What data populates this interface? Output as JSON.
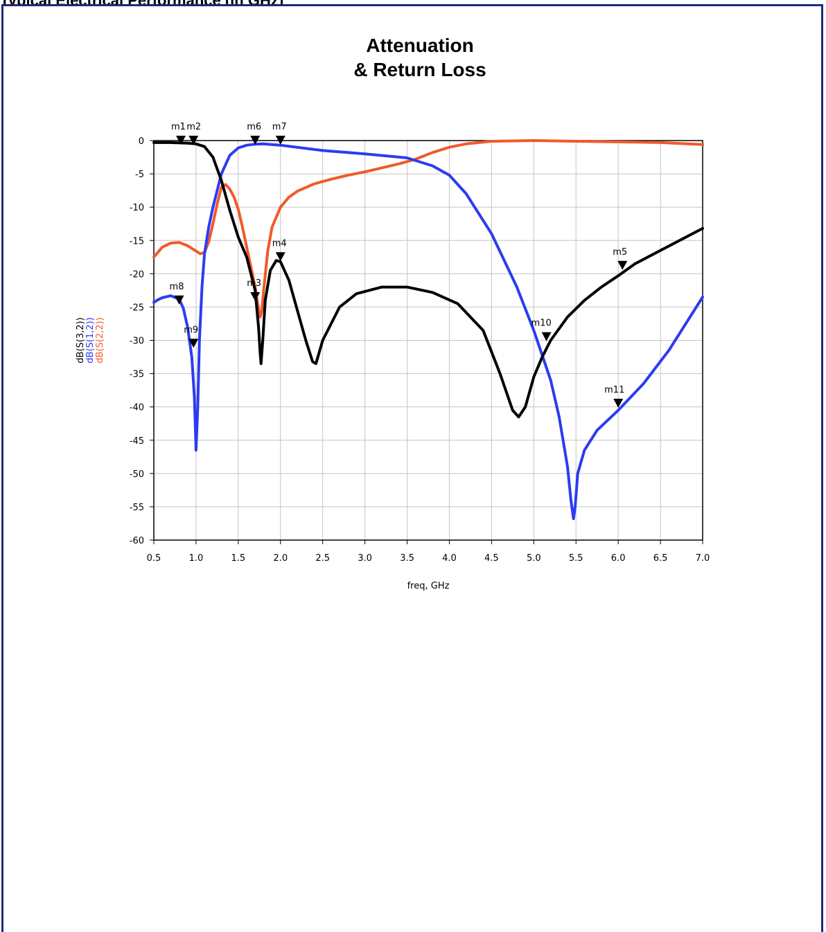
{
  "header": {
    "text": "Typical Electrical Performance (in GHz)"
  },
  "chart_data": {
    "type": "line",
    "title_lines": [
      "Attenuation",
      "& Return Loss"
    ],
    "xlabel": "freq, GHz",
    "ylabels": [
      {
        "text": "dB(S(3,2))",
        "color": "#000000"
      },
      {
        "text": "dB(S(1,2))",
        "color": "#2b3cf0"
      },
      {
        "text": "dB(S(2,2))",
        "color": "#f05a28"
      }
    ],
    "xlim": [
      0.5,
      7.0
    ],
    "ylim": [
      -60,
      0
    ],
    "xticks": [
      0.5,
      1.0,
      1.5,
      2.0,
      2.5,
      3.0,
      3.5,
      4.0,
      4.5,
      5.0,
      5.5,
      6.0,
      6.5,
      7.0
    ],
    "xtick_labels": [
      "0.5",
      "1.0",
      "1.5",
      "2.0",
      "2.5",
      "3.0",
      "3.5",
      "4.0",
      "4.5",
      "5.0",
      "5.5",
      "6.0",
      "6.5",
      "7.0"
    ],
    "yticks": [
      0,
      -5,
      -10,
      -15,
      -20,
      -25,
      -30,
      -35,
      -40,
      -45,
      -50,
      -55,
      -60
    ],
    "ytick_labels": [
      "0",
      "-5",
      "-10",
      "-15",
      "-20",
      "-25",
      "-30",
      "-35",
      "-40",
      "-45",
      "-50",
      "-55",
      "-60"
    ],
    "grid": true,
    "series": [
      {
        "name": "dB(S(2,2))",
        "color": "#f05a28",
        "x": [
          0.5,
          0.6,
          0.7,
          0.8,
          0.9,
          1.0,
          1.05,
          1.1,
          1.15,
          1.2,
          1.25,
          1.3,
          1.35,
          1.4,
          1.45,
          1.5,
          1.55,
          1.6,
          1.65,
          1.7,
          1.73,
          1.76,
          1.78,
          1.8,
          1.85,
          1.9,
          2.0,
          2.1,
          2.2,
          2.4,
          2.6,
          2.8,
          3.0,
          3.2,
          3.4,
          3.6,
          3.8,
          4.0,
          4.2,
          4.5,
          5.0,
          5.5,
          6.0,
          6.5,
          7.0
        ],
        "y": [
          -17.5,
          -16.0,
          -15.4,
          -15.3,
          -15.8,
          -16.6,
          -17.0,
          -16.8,
          -15.2,
          -12.5,
          -9.5,
          -7.0,
          -6.6,
          -7.3,
          -8.5,
          -10.3,
          -13,
          -16,
          -19,
          -22,
          -24.5,
          -26.5,
          -25.5,
          -22.5,
          -16.5,
          -13,
          -10,
          -8.5,
          -7.6,
          -6.5,
          -5.8,
          -5.2,
          -4.7,
          -4.1,
          -3.5,
          -2.8,
          -1.8,
          -1.0,
          -0.5,
          -0.1,
          0,
          -0.1,
          -0.2,
          -0.3,
          -0.6
        ]
      },
      {
        "name": "dB(S(1,2))",
        "color": "#2b3cf0",
        "x": [
          0.5,
          0.55,
          0.6,
          0.7,
          0.8,
          0.85,
          0.9,
          0.95,
          0.98,
          1.0,
          1.02,
          1.04,
          1.07,
          1.1,
          1.15,
          1.2,
          1.3,
          1.4,
          1.5,
          1.6,
          1.7,
          1.8,
          2.0,
          2.5,
          3.0,
          3.5,
          3.8,
          4.0,
          4.2,
          4.5,
          4.8,
          5.0,
          5.2,
          5.3,
          5.4,
          5.44,
          5.47,
          5.49,
          5.52,
          5.6,
          5.75,
          6.0,
          6.3,
          6.6,
          7.0
        ],
        "y": [
          -24.3,
          -23.9,
          -23.6,
          -23.3,
          -23.8,
          -25.2,
          -28,
          -32.5,
          -38.5,
          -46.5,
          -40,
          -30,
          -22,
          -17,
          -13,
          -10,
          -5,
          -2.2,
          -1.1,
          -0.7,
          -0.55,
          -0.5,
          -0.7,
          -1.5,
          -2.0,
          -2.6,
          -3.8,
          -5.2,
          -8.0,
          -14.0,
          -22.0,
          -28.5,
          -36.0,
          -41.5,
          -49,
          -54,
          -56.8,
          -55,
          -50,
          -46.5,
          -43.5,
          -40.5,
          -36.5,
          -31.5,
          -23.5
        ]
      },
      {
        "name": "dB(S(3,2))",
        "color": "#000000",
        "x": [
          0.5,
          0.7,
          0.9,
          1.0,
          1.1,
          1.2,
          1.3,
          1.4,
          1.5,
          1.6,
          1.7,
          1.74,
          1.76,
          1.77,
          1.79,
          1.82,
          1.88,
          1.95,
          2.0,
          2.1,
          2.2,
          2.3,
          2.38,
          2.42,
          2.5,
          2.7,
          2.9,
          3.2,
          3.5,
          3.8,
          4.1,
          4.4,
          4.6,
          4.75,
          4.82,
          4.9,
          5.0,
          5.1,
          5.2,
          5.4,
          5.6,
          5.8,
          6.0,
          6.2,
          6.5,
          7.0
        ],
        "y": [
          -0.3,
          -0.3,
          -0.4,
          -0.5,
          -0.9,
          -2.5,
          -6,
          -10.5,
          -14.5,
          -17.5,
          -22.5,
          -28,
          -32,
          -33.5,
          -30,
          -24,
          -19.5,
          -18,
          -18.2,
          -21,
          -25.5,
          -30,
          -33.2,
          -33.5,
          -30,
          -25,
          -23,
          -22,
          -22,
          -22.8,
          -24.5,
          -28.5,
          -35,
          -40.5,
          -41.5,
          -40,
          -35.5,
          -32.5,
          -30,
          -26.5,
          -24,
          -22,
          -20.3,
          -18.5,
          -16.5,
          -13.2
        ]
      }
    ],
    "markers": [
      {
        "name": "m1",
        "x": 0.82,
        "y": 0.0,
        "label": "m1",
        "label_dx": -14,
        "label_dy": -16
      },
      {
        "name": "m2",
        "x": 0.97,
        "y": 0.0,
        "label": "m2",
        "label_dx": -10,
        "label_dy": -16
      },
      {
        "name": "m6",
        "x": 1.7,
        "y": 0.0,
        "label": "m6",
        "label_dx": -12,
        "label_dy": -16
      },
      {
        "name": "m7",
        "x": 2.0,
        "y": 0.0,
        "label": "m7",
        "label_dx": -12,
        "label_dy": -16
      },
      {
        "name": "m4",
        "x": 2.0,
        "y": -17.5,
        "label": "m4",
        "label_dx": -12,
        "label_dy": -16
      },
      {
        "name": "m3",
        "x": 1.7,
        "y": -23.5,
        "label": "m3",
        "label_dx": -12,
        "label_dy": -16
      },
      {
        "name": "m8",
        "x": 0.8,
        "y": -24.0,
        "label": "m8",
        "label_dx": -14,
        "label_dy": -16
      },
      {
        "name": "m9",
        "x": 0.97,
        "y": -30.5,
        "label": "m9",
        "label_dx": -14,
        "label_dy": -16
      },
      {
        "name": "m10",
        "x": 5.15,
        "y": -29.5,
        "label": "m10",
        "label_dx": -22,
        "label_dy": -16
      },
      {
        "name": "m5",
        "x": 6.05,
        "y": -18.8,
        "label": "m5",
        "label_dx": -14,
        "label_dy": -16
      },
      {
        "name": "m11",
        "x": 6.0,
        "y": -39.5,
        "label": "m11",
        "label_dx": -20,
        "label_dy": -16
      }
    ]
  }
}
